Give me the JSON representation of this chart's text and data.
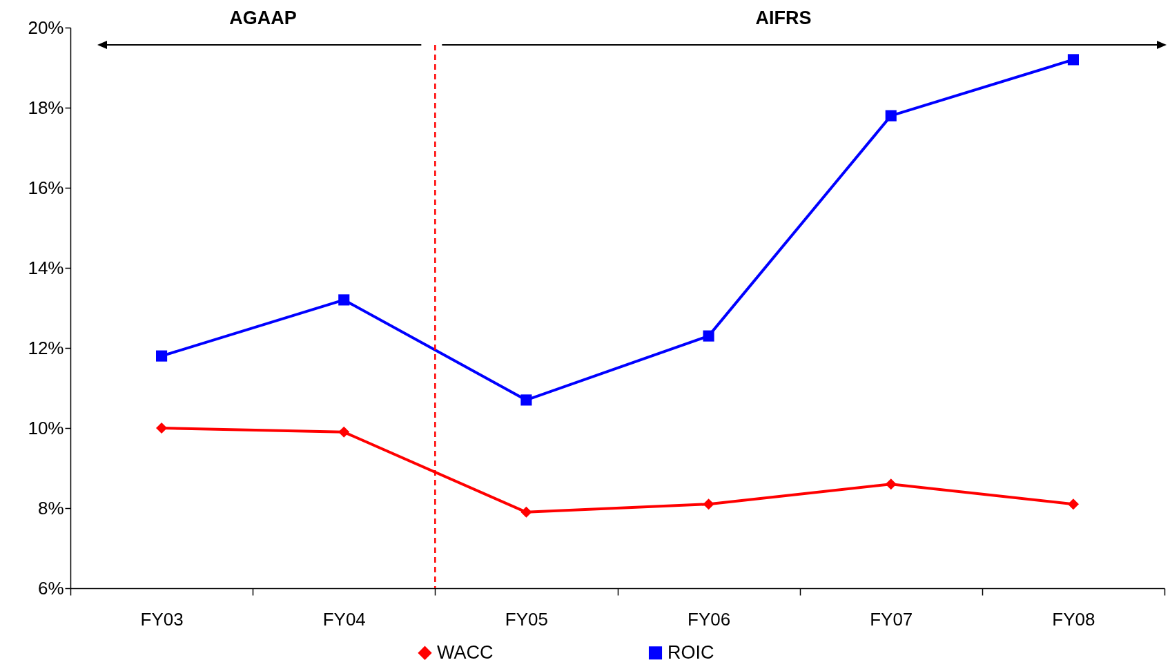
{
  "chart_data": {
    "type": "line",
    "categories": [
      "FY03",
      "FY04",
      "FY05",
      "FY06",
      "FY07",
      "FY08"
    ],
    "series": [
      {
        "name": "WACC",
        "color": "#ff0000",
        "marker": "diamond",
        "values": [
          10.0,
          9.9,
          7.9,
          8.1,
          8.6,
          8.1
        ]
      },
      {
        "name": "ROIC",
        "color": "#0000ff",
        "marker": "square",
        "values": [
          11.8,
          13.2,
          10.7,
          12.3,
          17.8,
          19.2
        ]
      }
    ],
    "ylim": [
      6,
      20
    ],
    "yticks": [
      {
        "value": 6,
        "label": "6%"
      },
      {
        "value": 8,
        "label": "8%"
      },
      {
        "value": 10,
        "label": "10%"
      },
      {
        "value": 12,
        "label": "12%"
      },
      {
        "value": 14,
        "label": "14%"
      },
      {
        "value": 16,
        "label": "16%"
      },
      {
        "value": 18,
        "label": "18%"
      },
      {
        "value": 20,
        "label": "20%"
      }
    ],
    "annotations": [
      "AGAAP",
      "AIFRS"
    ],
    "grid": false,
    "legend": "bottom"
  }
}
